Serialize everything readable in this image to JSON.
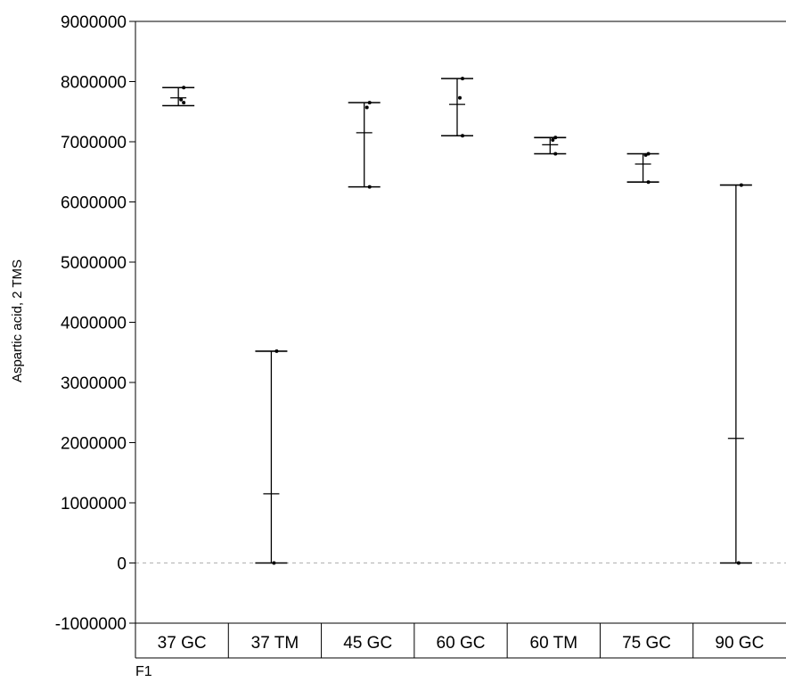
{
  "chart_data": {
    "type": "scatter",
    "ylabel": "Aspartic acid, 2 TMS",
    "factor_label": "F1",
    "ylim": [
      -1000000,
      9000000
    ],
    "yticks": [
      {
        "value": 9000000,
        "label": "9000000"
      },
      {
        "value": 8000000,
        "label": "8000000"
      },
      {
        "value": 7000000,
        "label": "7000000"
      },
      {
        "value": 6000000,
        "label": "6000000"
      },
      {
        "value": 5000000,
        "label": "5000000"
      },
      {
        "value": 4000000,
        "label": "4000000"
      },
      {
        "value": 3000000,
        "label": "3000000"
      },
      {
        "value": 2000000,
        "label": "2000000"
      },
      {
        "value": 1000000,
        "label": "1000000"
      },
      {
        "value": 0,
        "label": "0"
      },
      {
        "value": -1000000,
        "label": "-1000000"
      }
    ],
    "zero_reference_line": true,
    "categories": [
      "37 GC",
      "37 TM",
      "45 GC",
      "60 GC",
      "60 TM",
      "75 GC",
      "90 GC"
    ],
    "groups": [
      {
        "category": "37 GC",
        "min": 7600000,
        "mean": 7730000,
        "max": 7900000,
        "points": [
          7900000,
          7700000,
          7650000
        ]
      },
      {
        "category": "37 TM",
        "min": 0,
        "mean": 1150000,
        "max": 3520000,
        "points": [
          3520000,
          0
        ]
      },
      {
        "category": "45 GC",
        "min": 6250000,
        "mean": 7150000,
        "max": 7650000,
        "points": [
          7650000,
          7570000,
          6250000
        ]
      },
      {
        "category": "60 GC",
        "min": 7100000,
        "mean": 7620000,
        "max": 8050000,
        "points": [
          8050000,
          7730000,
          7100000
        ]
      },
      {
        "category": "60 TM",
        "min": 6800000,
        "mean": 6950000,
        "max": 7070000,
        "points": [
          7070000,
          7030000,
          6800000
        ]
      },
      {
        "category": "75 GC",
        "min": 6330000,
        "mean": 6630000,
        "max": 6800000,
        "points": [
          6800000,
          6780000,
          6330000
        ]
      },
      {
        "category": "90 GC",
        "min": 0,
        "mean": 2070000,
        "max": 6280000,
        "points": [
          6280000,
          0
        ]
      }
    ]
  }
}
